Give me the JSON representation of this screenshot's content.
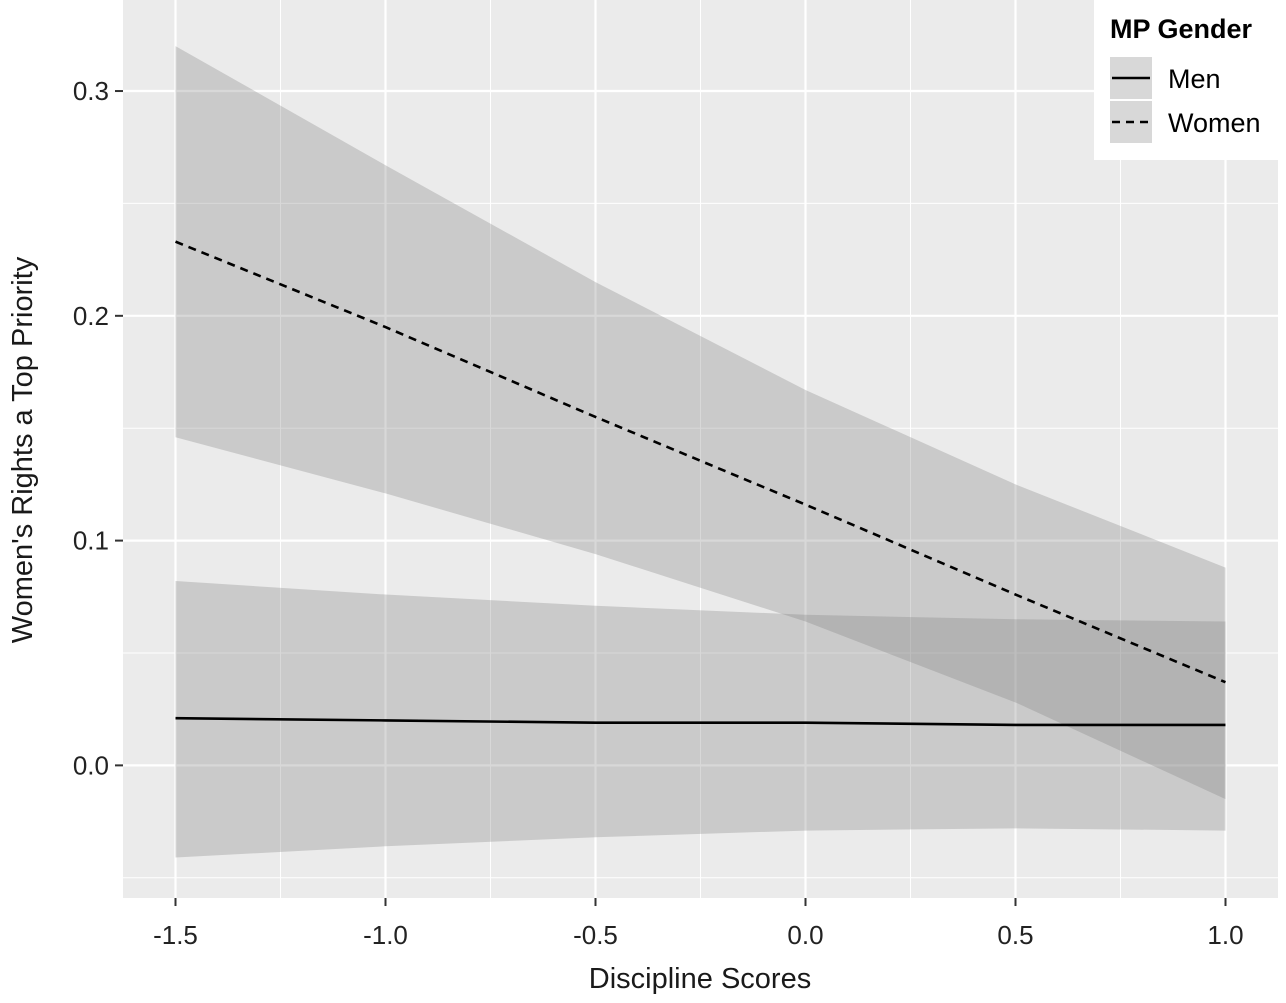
{
  "chart_data": {
    "type": "line",
    "x_label": "Discipline Scores",
    "y_label": "Women's Rights a Top Priority",
    "x": [
      -1.5,
      -1.0,
      -0.5,
      0,
      0.5,
      1.0
    ],
    "series": [
      {
        "name": "Men",
        "color": "#000000",
        "dash": false,
        "values": [
          0.021,
          0.02,
          0.019,
          0.019,
          0.018,
          0.018
        ],
        "upper": [
          0.082,
          0.076,
          0.071,
          0.067,
          0.065,
          0.064
        ],
        "lower": [
          -0.041,
          -0.036,
          -0.032,
          -0.029,
          -0.028,
          -0.029
        ]
      },
      {
        "name": "Women",
        "color": "#000000",
        "dash": true,
        "values": [
          0.233,
          0.195,
          0.155,
          0.116,
          0.076,
          0.037
        ],
        "upper": [
          0.32,
          0.267,
          0.215,
          0.167,
          0.125,
          0.088
        ],
        "lower": [
          0.146,
          0.121,
          0.094,
          0.064,
          0.028,
          -0.015
        ]
      }
    ],
    "ribbon_color": "#7f7f7f",
    "ribbon_opacity": 0.3,
    "legend_title": "MP Gender",
    "legend": "top-right",
    "xlim": [
      -1.625,
      1.125
    ],
    "ylim": [
      -0.059,
      0.3405
    ],
    "xticks": [
      -1.5,
      {
        "value": -1,
        "label": "-1.0"
      },
      -0.5,
      {
        "value": 0,
        "label": "0.0"
      },
      0.5,
      {
        "value": 1,
        "label": "1.0"
      }
    ],
    "yticks": [
      {
        "value": 0,
        "label": "0.0"
      },
      0.1,
      0.2,
      0.3
    ],
    "xminorticks": [
      -1.25,
      -0.75,
      -0.25,
      0.25,
      0.75
    ],
    "yminorticks": [
      -0.05,
      0.05,
      0.15,
      0.25
    ],
    "grid": true,
    "panel_color": "#ebebeb"
  }
}
